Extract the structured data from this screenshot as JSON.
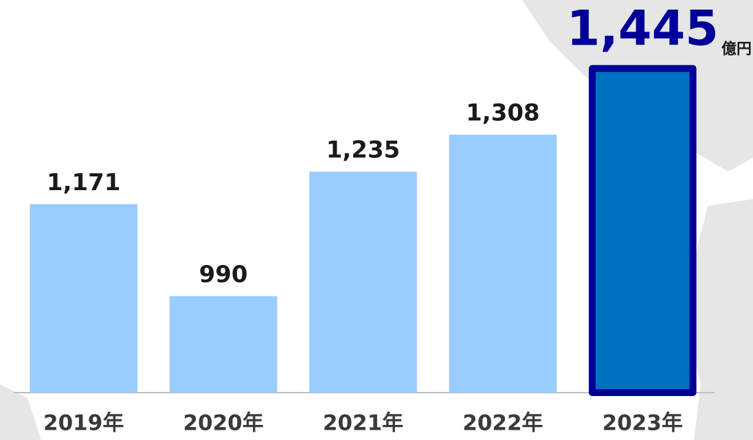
{
  "chart_data": {
    "type": "bar",
    "unit": "億円",
    "categories": [
      "2019年",
      "2020年",
      "2021年",
      "2022年",
      "2023年"
    ],
    "values": [
      1171,
      990,
      1235,
      1308,
      1445
    ],
    "value_labels": [
      "1,171",
      "990",
      "1,235",
      "1,308",
      "1,445"
    ],
    "colors": [
      "#99ccff",
      "#99ccff",
      "#99ccff",
      "#99ccff",
      "#0070c0"
    ],
    "edge_colors": [
      null,
      null,
      null,
      null,
      "#000099"
    ],
    "label_colors": [
      "#1a1a1a",
      "#1a1a1a",
      "#1a1a1a",
      "#1a1a1a",
      "#000099"
    ],
    "ylim": [
      800,
      1450
    ]
  }
}
